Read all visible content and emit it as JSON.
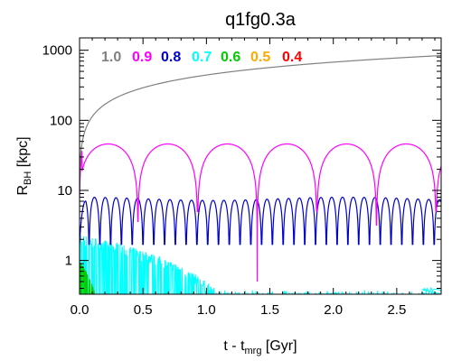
{
  "chart_data": {
    "type": "line",
    "title": "q1fg0.3a",
    "xlabel": {
      "main": "t - t",
      "sub": "mrg",
      "unit": " [Gyr]"
    },
    "ylabel": {
      "main": "R",
      "sub": "BH",
      "unit": " [kpc]"
    },
    "xlim": [
      0,
      2.85
    ],
    "ylim": [
      0.33,
      1500
    ],
    "yscale": "log",
    "x_ticks": [
      "0.0",
      "0.5",
      "1.0",
      "1.5",
      "2.0",
      "2.5"
    ],
    "y_ticks": [
      "1",
      "10",
      "100",
      "1000"
    ],
    "grid": false,
    "legend_position": "top",
    "series": [
      {
        "name": "1.0",
        "color": "#808080",
        "shape": "rising",
        "start": 9,
        "end": 840
      },
      {
        "name": "0.9",
        "color": "#ff00ff",
        "shape": "arches",
        "amplitude": 46,
        "period_gyr": 0.47,
        "minima": [
          5,
          3.6,
          5,
          0.5,
          5,
          3.2,
          5,
          0.35,
          5
        ]
      },
      {
        "name": "0.8",
        "color": "#0000cc",
        "shape": "oscillation",
        "amplitude": 8,
        "period_gyr": 0.085,
        "min": 1.7
      },
      {
        "name": "0.7",
        "color": "#00ffff",
        "shape": "decaying",
        "start_max": 2.0,
        "end_x": 1.1
      },
      {
        "name": "0.6",
        "color": "#00cc00",
        "shape": "decaying",
        "start_max": 0.6,
        "end_x": 0.12
      },
      {
        "name": "0.5",
        "color": "#ffaa00",
        "shape": "floor"
      },
      {
        "name": "0.4",
        "color": "#ff0000",
        "shape": "floor"
      }
    ]
  }
}
